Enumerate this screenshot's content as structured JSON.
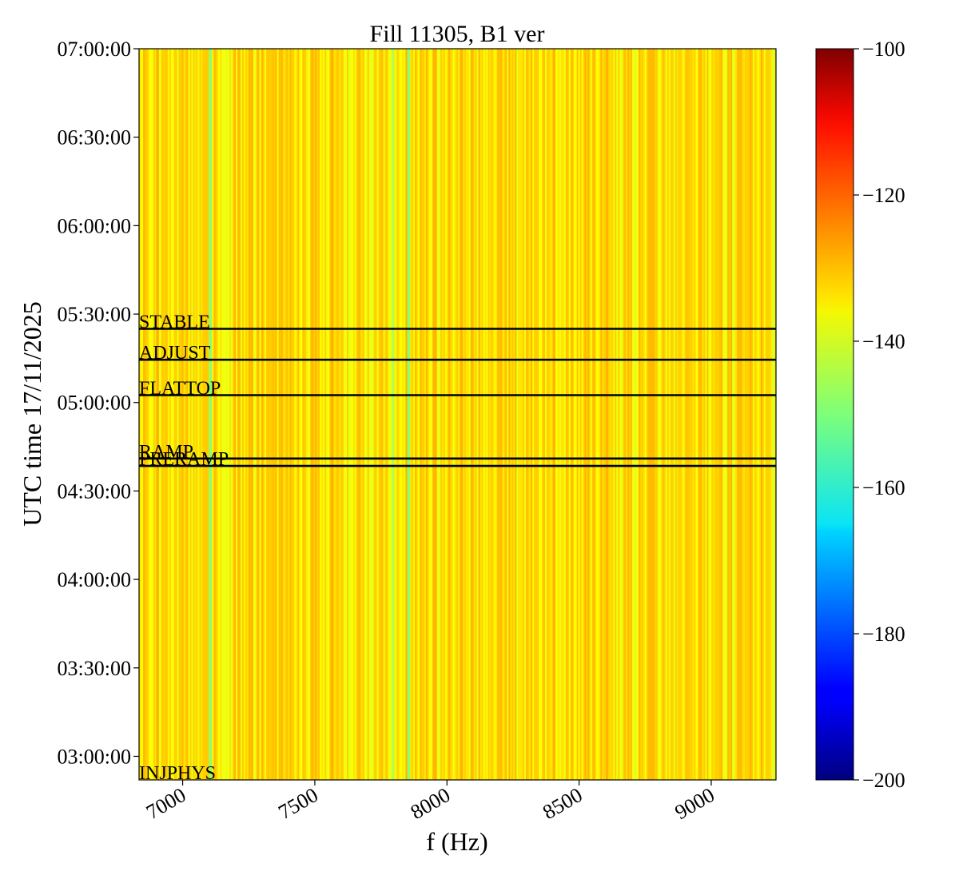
{
  "chart_data": {
    "type": "heatmap",
    "title": "Fill 11305, B1 ver",
    "xlabel": "f (Hz)",
    "ylabel": "UTC time 17/11/2025",
    "xlim": [
      6835,
      9245
    ],
    "ylim": [
      "02:52:00",
      "07:00:00"
    ],
    "x_ticks": [
      7000,
      7500,
      8000,
      8500,
      9000
    ],
    "x_tick_labels": [
      "7000",
      "7500",
      "8000",
      "8500",
      "9000"
    ],
    "y_ticks": [
      "03:00:00",
      "03:30:00",
      "04:00:00",
      "04:30:00",
      "05:00:00",
      "05:30:00",
      "06:00:00",
      "06:30:00",
      "07:00:00"
    ],
    "y_tick_labels": [
      "03:00:00",
      "03:30:00",
      "04:00:00",
      "04:30:00",
      "05:00:00",
      "05:30:00",
      "06:00:00",
      "06:30:00",
      "07:00:00"
    ],
    "colormap": "jet",
    "colorbar": {
      "range": [
        -200,
        -100
      ],
      "ticks": [
        -200,
        -180,
        -160,
        -140,
        -120,
        -100
      ],
      "tick_labels": [
        "−200",
        "−180",
        "−160",
        "−140",
        "−120",
        "−100"
      ]
    },
    "grid": false,
    "value_note": "Power approx. -128 to -148 dB, uniform in time; vertical stripes vary with frequency",
    "stripes": [
      {
        "f": 7100,
        "value": -149
      },
      {
        "f": 7850,
        "value": -149
      },
      {
        "f": 7790,
        "value": -145
      },
      {
        "f": 9230,
        "value": -141
      },
      {
        "f": 6850,
        "value": -131
      },
      {
        "f": 6900,
        "value": -130
      },
      {
        "f": 7280,
        "value": -131
      },
      {
        "f": 7370,
        "value": -131
      },
      {
        "f": 7560,
        "value": -130
      },
      {
        "f": 7950,
        "value": -130
      },
      {
        "f": 8050,
        "value": -130
      },
      {
        "f": 8200,
        "value": -131
      },
      {
        "f": 8400,
        "value": -130
      },
      {
        "f": 8550,
        "value": -131
      },
      {
        "f": 8600,
        "value": -130
      },
      {
        "f": 8760,
        "value": -131
      },
      {
        "f": 8950,
        "value": -131
      },
      {
        "f": 9100,
        "value": -131
      }
    ],
    "base_value": -135,
    "phases": [
      {
        "name": "STABLE",
        "time": "05:25:00"
      },
      {
        "name": "ADJUST",
        "time": "05:14:30"
      },
      {
        "name": "FLATTOP",
        "time": "05:02:30"
      },
      {
        "name": "RAMP",
        "time": "04:41:00"
      },
      {
        "name": "PRERAMP",
        "time": "04:38:30"
      },
      {
        "name": "INJPHYS",
        "time": "02:52:00"
      }
    ]
  }
}
